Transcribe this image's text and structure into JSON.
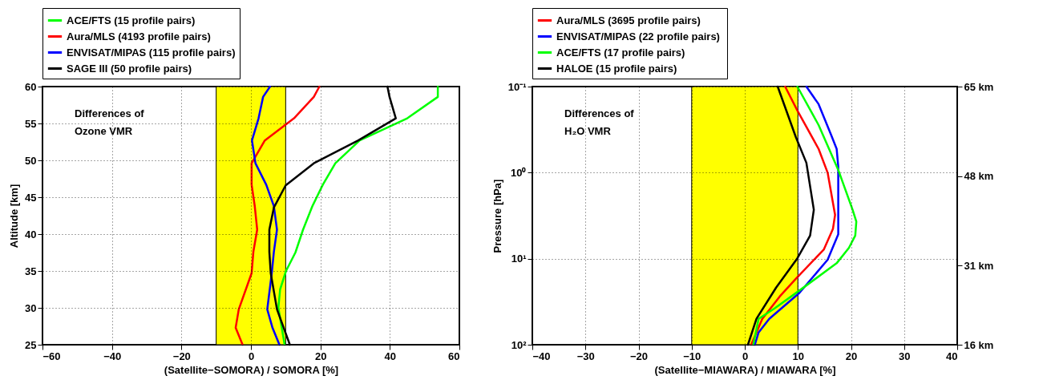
{
  "chart_data": [
    {
      "type": "line",
      "xlabel": "(Satellite−SOMORA) / SOMORA [%]",
      "ylabel": "Altitude [km]",
      "annotations": [
        "Differences of\nOzone VMR"
      ],
      "xlim": [
        -60,
        60
      ],
      "xticks": [
        -60,
        -40,
        -20,
        0,
        20,
        40,
        60
      ],
      "ylim": [
        25,
        60
      ],
      "yticks": [
        25,
        30,
        35,
        40,
        45,
        50,
        55,
        60
      ],
      "grid": true,
      "legend": "top",
      "bands": [
        {
          "axis": "x",
          "from": -10,
          "to": 10,
          "color": "#ffff00"
        }
      ],
      "series": [
        {
          "name": "ACE/FTS  (15 profile pairs)",
          "color": "#00ff00",
          "x": [
            9.7,
            7.9,
            8.4,
            10.1,
            12.8,
            15,
            17.7,
            20.7,
            24.3,
            31.3,
            45,
            53.8,
            53.8
          ],
          "values": [
            25,
            30,
            32.5,
            35,
            37.5,
            40.6,
            43.8,
            46.7,
            49.6,
            52.7,
            55.7,
            58.6,
            60
          ]
        },
        {
          "name": "Aura/MLS  (4193 profile pairs)",
          "color": "#ff0000",
          "x": [
            -2.4,
            -4.4,
            -3.5,
            0.2,
            0.7,
            1.8,
            1.1,
            0.2,
            0.2,
            4,
            12.4,
            18.1,
            19.7
          ],
          "values": [
            25,
            27.3,
            29.8,
            34.7,
            37.6,
            40.6,
            43.8,
            46.7,
            49.6,
            52.7,
            55.7,
            58.6,
            60
          ]
        },
        {
          "name": "ENVISAT/MIPAS (115 profile pairs)",
          "color": "#0000ff",
          "x": [
            8.2,
            6.2,
            4.7,
            6,
            6.6,
            7.5,
            6.6,
            4.4,
            1.3,
            0.3,
            2.2,
            3.5,
            5.5
          ],
          "values": [
            25,
            27.3,
            29.8,
            34.7,
            37.6,
            40.6,
            43.8,
            46.7,
            49.6,
            52.7,
            55.7,
            58.6,
            60
          ]
        },
        {
          "name": "SAGE III  (50 profile pairs)",
          "color": "#000000",
          "x": [
            11.2,
            7.5,
            5.7,
            5.3,
            5.3,
            6.6,
            10,
            18.1,
            30.9,
            41.7,
            39.9,
            39.3
          ],
          "values": [
            25,
            29.8,
            34.7,
            37.6,
            40.6,
            43.6,
            46.6,
            49.6,
            52.7,
            55.7,
            58.6,
            60
          ]
        }
      ]
    },
    {
      "type": "line",
      "xlabel": "(Satellite−MIAWARA) / MIAWARA [%]",
      "ylabel": "Pressure [hPa]",
      "annotations": [
        "Differences of\nH₂O VMR"
      ],
      "xlim": [
        -40,
        40
      ],
      "xticks": [
        -40,
        -30,
        -20,
        -10,
        0,
        10,
        20,
        30,
        40
      ],
      "ylim": [
        100,
        0.1
      ],
      "yticks": [
        {
          "value": 0.1,
          "label": "10⁻¹"
        },
        {
          "value": 1,
          "label": "10⁰"
        },
        {
          "value": 10,
          "label": "10¹"
        },
        {
          "value": 100,
          "label": "10²"
        }
      ],
      "log": "y",
      "y2lim": [
        16,
        65
      ],
      "y2ticks": [
        {
          "value": 65,
          "label": "65 km"
        },
        {
          "value": 48,
          "label": "48 km"
        },
        {
          "value": 31,
          "label": "31 km"
        },
        {
          "value": 16,
          "label": "16 km"
        }
      ],
      "grid": true,
      "legend": "top",
      "bands": [
        {
          "axis": "x",
          "from": -10,
          "to": 10,
          "color": "#ffff00"
        }
      ],
      "series": [
        {
          "name": "Aura/MLS  (3695 profile pairs)",
          "color": "#ff0000",
          "x": [
            7.6,
            9.9,
            13.9,
            15.6,
            17,
            16.6,
            14.9,
            9.6,
            6.6,
            3.3,
            1.2
          ],
          "values": [
            0.1,
            0.19,
            0.53,
            1.0,
            3.1,
            4.5,
            7.8,
            17.2,
            27.4,
            50,
            100
          ]
        },
        {
          "name": "ENVISAT/MIPAS  (22 profile pairs)",
          "color": "#0000ff",
          "x": [
            11.6,
            13.9,
            16.3,
            17.3,
            17.6,
            17.6,
            17.6,
            15.6,
            10.3,
            4.6,
            2.6,
            1.9
          ],
          "values": [
            0.1,
            0.16,
            0.37,
            0.53,
            0.85,
            1.6,
            5.2,
            10.3,
            24.9,
            50,
            72,
            100
          ]
        },
        {
          "name": "ACE/FTS (17 profile pairs)",
          "color": "#00ff00",
          "x": [
            9.9,
            13.9,
            17.6,
            20.3,
            21,
            20.8,
            19.6,
            17.3,
            10.6,
            5.6,
            2.6,
            1.6
          ],
          "values": [
            0.1,
            0.28,
            0.93,
            2.7,
            3.7,
            5.4,
            7.5,
            11.3,
            22.7,
            37.9,
            50,
            100
          ]
        },
        {
          "name": "HALOE  (15 profile pairs)",
          "color": "#000000",
          "x": [
            6.2,
            9.6,
            11.6,
            13,
            12.3,
            9.9,
            5.9,
            2.2,
            0.6
          ],
          "values": [
            0.1,
            0.384,
            0.77,
            2.7,
            5.4,
            9.9,
            21.7,
            49.9,
            100
          ]
        }
      ]
    }
  ]
}
